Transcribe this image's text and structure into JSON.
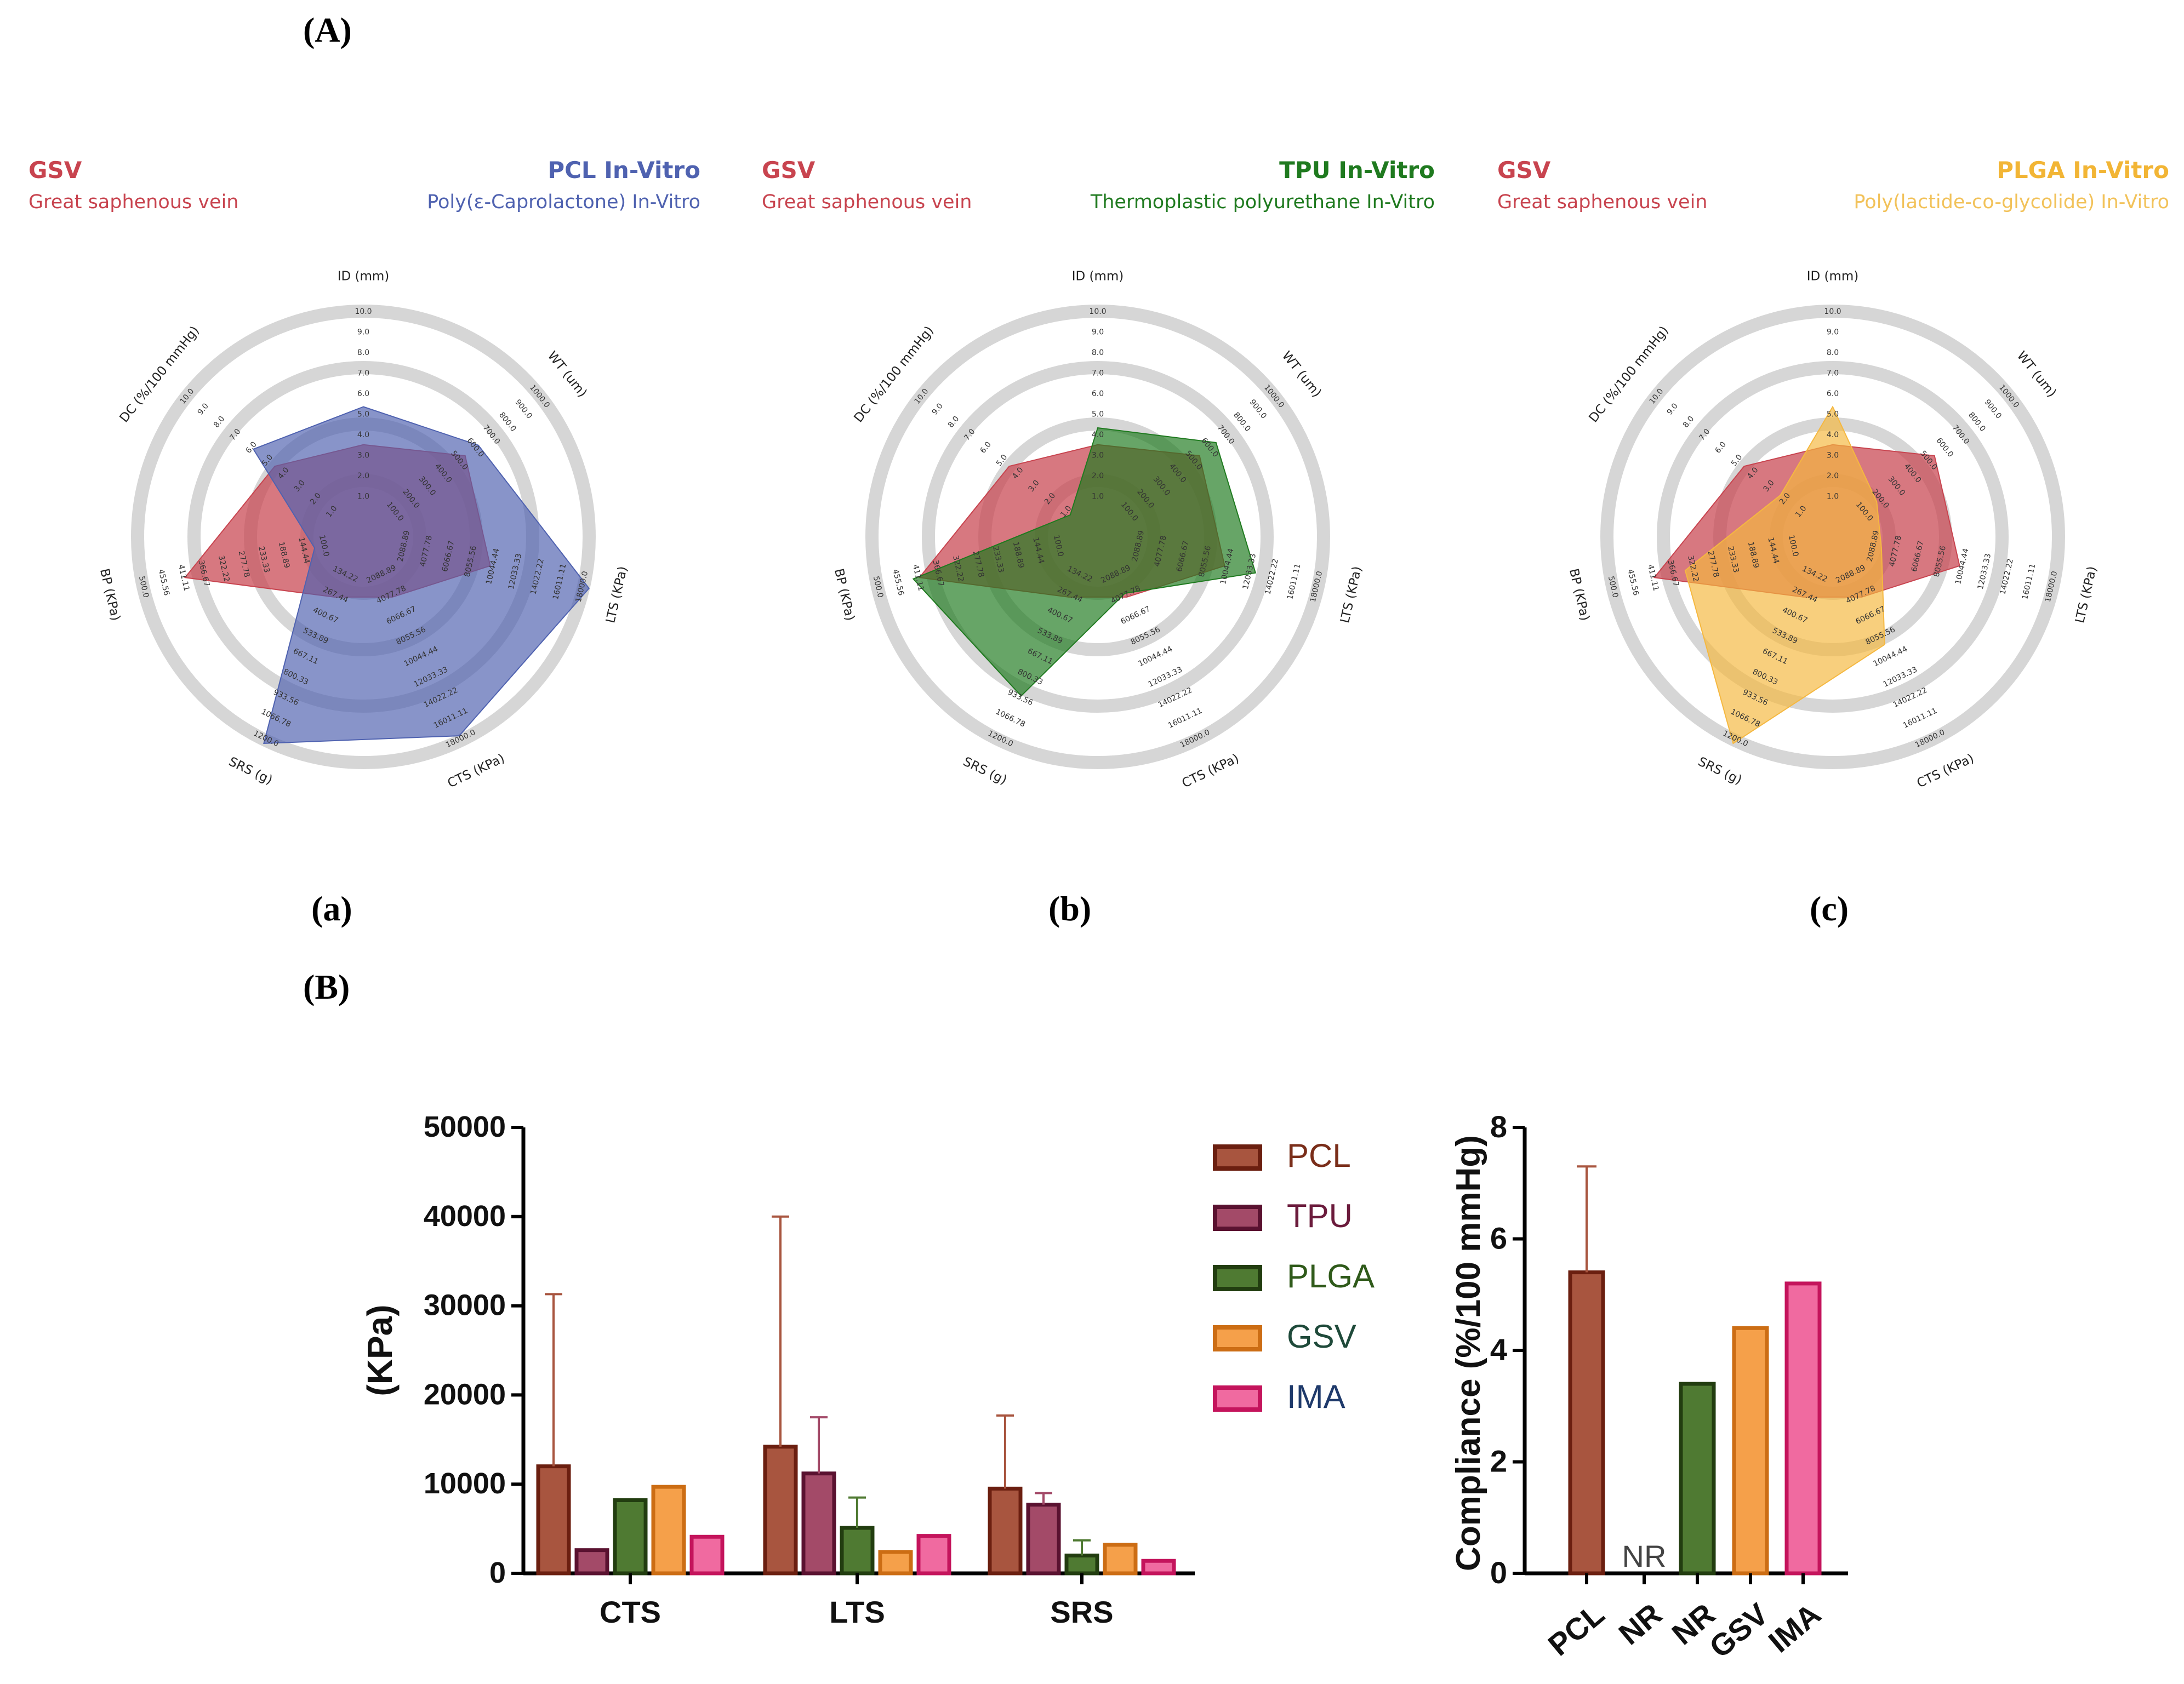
{
  "labels": {
    "A": "(A)",
    "a": "(a)",
    "b": "(b)",
    "c": "(c)",
    "B": "(B)"
  },
  "colors": {
    "gsv_radar": "#c8444f",
    "pcl_radar": "#4f62b0",
    "tpu_radar": "#1f7a1f",
    "plga_radar": "#f5b840",
    "ring": "#d6d6d6"
  },
  "chart_data": [
    {
      "type": "radar",
      "id": "a",
      "left_title": "GSV",
      "left_subtitle": "Great saphenous vein",
      "right_title": "PCL In-Vitro",
      "right_subtitle": "Poly(ε-Caprolactone) In-Vitro",
      "axes": [
        {
          "label": "ID (mm)",
          "max": 10,
          "ticks": [
            "1.0",
            "2.0",
            "3.0",
            "4.0",
            "5.0",
            "6.0",
            "7.0",
            "8.0",
            "9.0",
            "10.0"
          ]
        },
        {
          "label": "WT (um)",
          "max": 1000,
          "ticks": [
            "100.0",
            "200.0",
            "300.0",
            "400.0",
            "500.0",
            "600.0",
            "700.0",
            "800.0",
            "900.0",
            "1000.0"
          ]
        },
        {
          "label": "LTS (KPa)",
          "max": 18000,
          "ticks": [
            "2088.89",
            "4077.78",
            "6066.67",
            "8055.56",
            "10044.44",
            "12033.33",
            "14022.22",
            "16011.11",
            "18000.0"
          ]
        },
        {
          "label": "CTS (KPa)",
          "max": 18000,
          "ticks": [
            "2088.89",
            "4077.78",
            "6066.67",
            "8055.56",
            "10044.44",
            "12033.33",
            "14022.22",
            "16011.11",
            "18000.0"
          ]
        },
        {
          "label": "SRS (g)",
          "max": 1200,
          "ticks": [
            "134.22",
            "267.44",
            "400.67",
            "533.89",
            "667.11",
            "800.33",
            "933.56",
            "1066.78",
            "1200.0"
          ]
        },
        {
          "label": "BP (KPa)",
          "max": 500,
          "ticks": [
            "100.0",
            "144.44",
            "188.89",
            "233.33",
            "277.78",
            "322.22",
            "366.67",
            "411.11",
            "455.56",
            "500.0"
          ]
        },
        {
          "label": "DC (%/100 mmHg)",
          "max": 10,
          "ticks": [
            "1.0",
            "2.0",
            "3.0",
            "4.0",
            "5.0",
            "6.0",
            "7.0",
            "8.0",
            "9.0",
            "10.0"
          ]
        }
      ],
      "series": [
        {
          "name": "GSV",
          "fractions": [
            0.32,
            0.5,
            0.5,
            0.2,
            0.2,
            0.75,
            0.42
          ]
        },
        {
          "name": "PCL In-Vitro",
          "fractions": [
            0.5,
            0.58,
            0.98,
            0.93,
            0.97,
            0.12,
            0.55
          ]
        }
      ]
    },
    {
      "type": "radar",
      "id": "b",
      "left_title": "GSV",
      "left_subtitle": "Great saphenous vein",
      "right_title": "TPU In-Vitro",
      "right_subtitle": "Thermoplastic polyurethane In-Vitro",
      "axes": [
        {
          "label": "ID (mm)",
          "max": 10,
          "ticks": [
            "1.0",
            "2.0",
            "3.0",
            "4.0",
            "5.0",
            "6.0",
            "7.0",
            "8.0",
            "9.0",
            "10.0"
          ]
        },
        {
          "label": "WT (um)",
          "max": 1000,
          "ticks": [
            "100.0",
            "200.0",
            "300.0",
            "400.0",
            "500.0",
            "600.0",
            "700.0",
            "800.0",
            "900.0",
            "1000.0"
          ]
        },
        {
          "label": "LTS (KPa)",
          "max": 18000,
          "ticks": [
            "2088.89",
            "4077.78",
            "6066.67",
            "8055.56",
            "10044.44",
            "12033.33",
            "14022.22",
            "16011.11",
            "18000.0"
          ]
        },
        {
          "label": "CTS (KPa)",
          "max": 18000,
          "ticks": [
            "2088.89",
            "4077.78",
            "6066.67",
            "8055.56",
            "10044.44",
            "12033.33",
            "14022.22",
            "16011.11",
            "18000.0"
          ]
        },
        {
          "label": "SRS (g)",
          "max": 1200,
          "ticks": [
            "134.22",
            "267.44",
            "400.67",
            "533.89",
            "667.11",
            "800.33",
            "933.56",
            "1066.78",
            "1200.0"
          ]
        },
        {
          "label": "BP (KPa)",
          "max": 500,
          "ticks": [
            "100.0",
            "144.44",
            "188.89",
            "233.33",
            "277.78",
            "322.22",
            "366.67",
            "411.11",
            "455.56",
            "500.0"
          ]
        },
        {
          "label": "DC (%/100 mmHg)",
          "max": 10,
          "ticks": [
            "1.0",
            "2.0",
            "3.0",
            "4.0",
            "5.0",
            "6.0",
            "7.0",
            "8.0",
            "9.0",
            "10.0"
          ]
        }
      ],
      "series": [
        {
          "name": "GSV",
          "fractions": [
            0.32,
            0.5,
            0.5,
            0.2,
            0.2,
            0.75,
            0.42
          ]
        },
        {
          "name": "TPU In-Vitro",
          "fractions": [
            0.4,
            0.6,
            0.65,
            0.18,
            0.72,
            0.78,
            0.05
          ]
        }
      ]
    },
    {
      "type": "radar",
      "id": "c",
      "left_title": "GSV",
      "left_subtitle": "Great saphenous vein",
      "right_title": "PLGA In-Vitro",
      "right_subtitle": "Poly(lactide-co-glycolide) In-Vitro",
      "axes": [
        {
          "label": "ID (mm)",
          "max": 10,
          "ticks": [
            "1.0",
            "2.0",
            "3.0",
            "4.0",
            "5.0",
            "6.0",
            "7.0",
            "8.0",
            "9.0",
            "10.0"
          ]
        },
        {
          "label": "WT (um)",
          "max": 1000,
          "ticks": [
            "100.0",
            "200.0",
            "300.0",
            "400.0",
            "500.0",
            "600.0",
            "700.0",
            "800.0",
            "900.0",
            "1000.0"
          ]
        },
        {
          "label": "LTS (KPa)",
          "max": 18000,
          "ticks": [
            "2088.89",
            "4077.78",
            "6066.67",
            "8055.56",
            "10044.44",
            "12033.33",
            "14022.22",
            "16011.11",
            "18000.0"
          ]
        },
        {
          "label": "CTS (KPa)",
          "max": 18000,
          "ticks": [
            "2088.89",
            "4077.78",
            "6066.67",
            "8055.56",
            "10044.44",
            "12033.33",
            "14022.22",
            "16011.11",
            "18000.0"
          ]
        },
        {
          "label": "SRS (g)",
          "max": 1200,
          "ticks": [
            "134.22",
            "267.44",
            "400.67",
            "533.89",
            "667.11",
            "800.33",
            "933.56",
            "1066.78",
            "1200.0"
          ]
        },
        {
          "label": "BP (KPa)",
          "max": 500,
          "ticks": [
            "100.0",
            "144.44",
            "188.89",
            "233.33",
            "277.78",
            "322.22",
            "366.67",
            "411.11",
            "455.56",
            "500.0"
          ]
        },
        {
          "label": "DC (%/100 mmHg)",
          "max": 10,
          "ticks": [
            "1.0",
            "2.0",
            "3.0",
            "4.0",
            "5.0",
            "6.0",
            "7.0",
            "8.0",
            "9.0",
            "10.0"
          ]
        }
      ],
      "series": [
        {
          "name": "GSV",
          "fractions": [
            0.32,
            0.5,
            0.5,
            0.2,
            0.2,
            0.75,
            0.42
          ]
        },
        {
          "name": "PLGA In-Vitro",
          "fractions": [
            0.5,
            0.15,
            0.12,
            0.45,
            0.97,
            0.6,
            0.2
          ]
        }
      ]
    },
    {
      "type": "bar",
      "id": "B-left",
      "ylabel": "(KPa)",
      "ylim": [
        0,
        50000
      ],
      "yticks": [
        "0",
        "10000",
        "20000",
        "30000",
        "40000",
        "50000"
      ],
      "categories": [
        "CTS",
        "LTS",
        "SRS"
      ],
      "series": [
        {
          "name": "PCL",
          "values": [
            12000,
            14200,
            9500
          ],
          "errors": [
            31300,
            40000,
            17700
          ],
          "fill": "#a8553f",
          "stroke": "#6b1f10",
          "label_color": "#7a2e1a"
        },
        {
          "name": "TPU",
          "values": [
            2600,
            11200,
            7700
          ],
          "errors": [
            null,
            17500,
            9000
          ],
          "fill": "#a34a68",
          "stroke": "#5a1230",
          "label_color": "#6b1b3c"
        },
        {
          "name": "PLGA",
          "values": [
            8200,
            5100,
            2000
          ],
          "errors": [
            null,
            8500,
            3700
          ],
          "fill": "#4f7a32",
          "stroke": "#223d10",
          "label_color": "#2f5a1a"
        },
        {
          "name": "GSV",
          "values": [
            9700,
            2400,
            3200
          ],
          "errors": [
            null,
            null,
            null
          ],
          "fill": "#f5a04a",
          "stroke": "#cc6d14",
          "label_color": "#1f4a3a"
        },
        {
          "name": "IMA",
          "values": [
            4100,
            4200,
            1400
          ],
          "errors": [
            null,
            null,
            null
          ],
          "fill": "#f06aa0",
          "stroke": "#c4145c",
          "label_color": "#1f3a6b"
        }
      ]
    },
    {
      "type": "bar",
      "id": "B-right",
      "ylabel": "Compliance (%/100 mmHg)",
      "ylim": [
        0,
        8
      ],
      "yticks": [
        "0",
        "2",
        "4",
        "6",
        "8"
      ],
      "categories": [
        "PCL",
        "NR",
        "NR",
        "GSV",
        "IMA"
      ],
      "values": [
        5.4,
        null,
        3.4,
        4.4,
        5.2
      ],
      "errors": [
        7.3,
        null,
        null,
        null,
        null
      ],
      "nr_label": "NR",
      "fills": [
        "#a8553f",
        null,
        "#4f7a32",
        "#f5a04a",
        "#f06aa0"
      ],
      "strokes": [
        "#6b1f10",
        null,
        "#223d10",
        "#cc6d14",
        "#c4145c"
      ]
    }
  ]
}
